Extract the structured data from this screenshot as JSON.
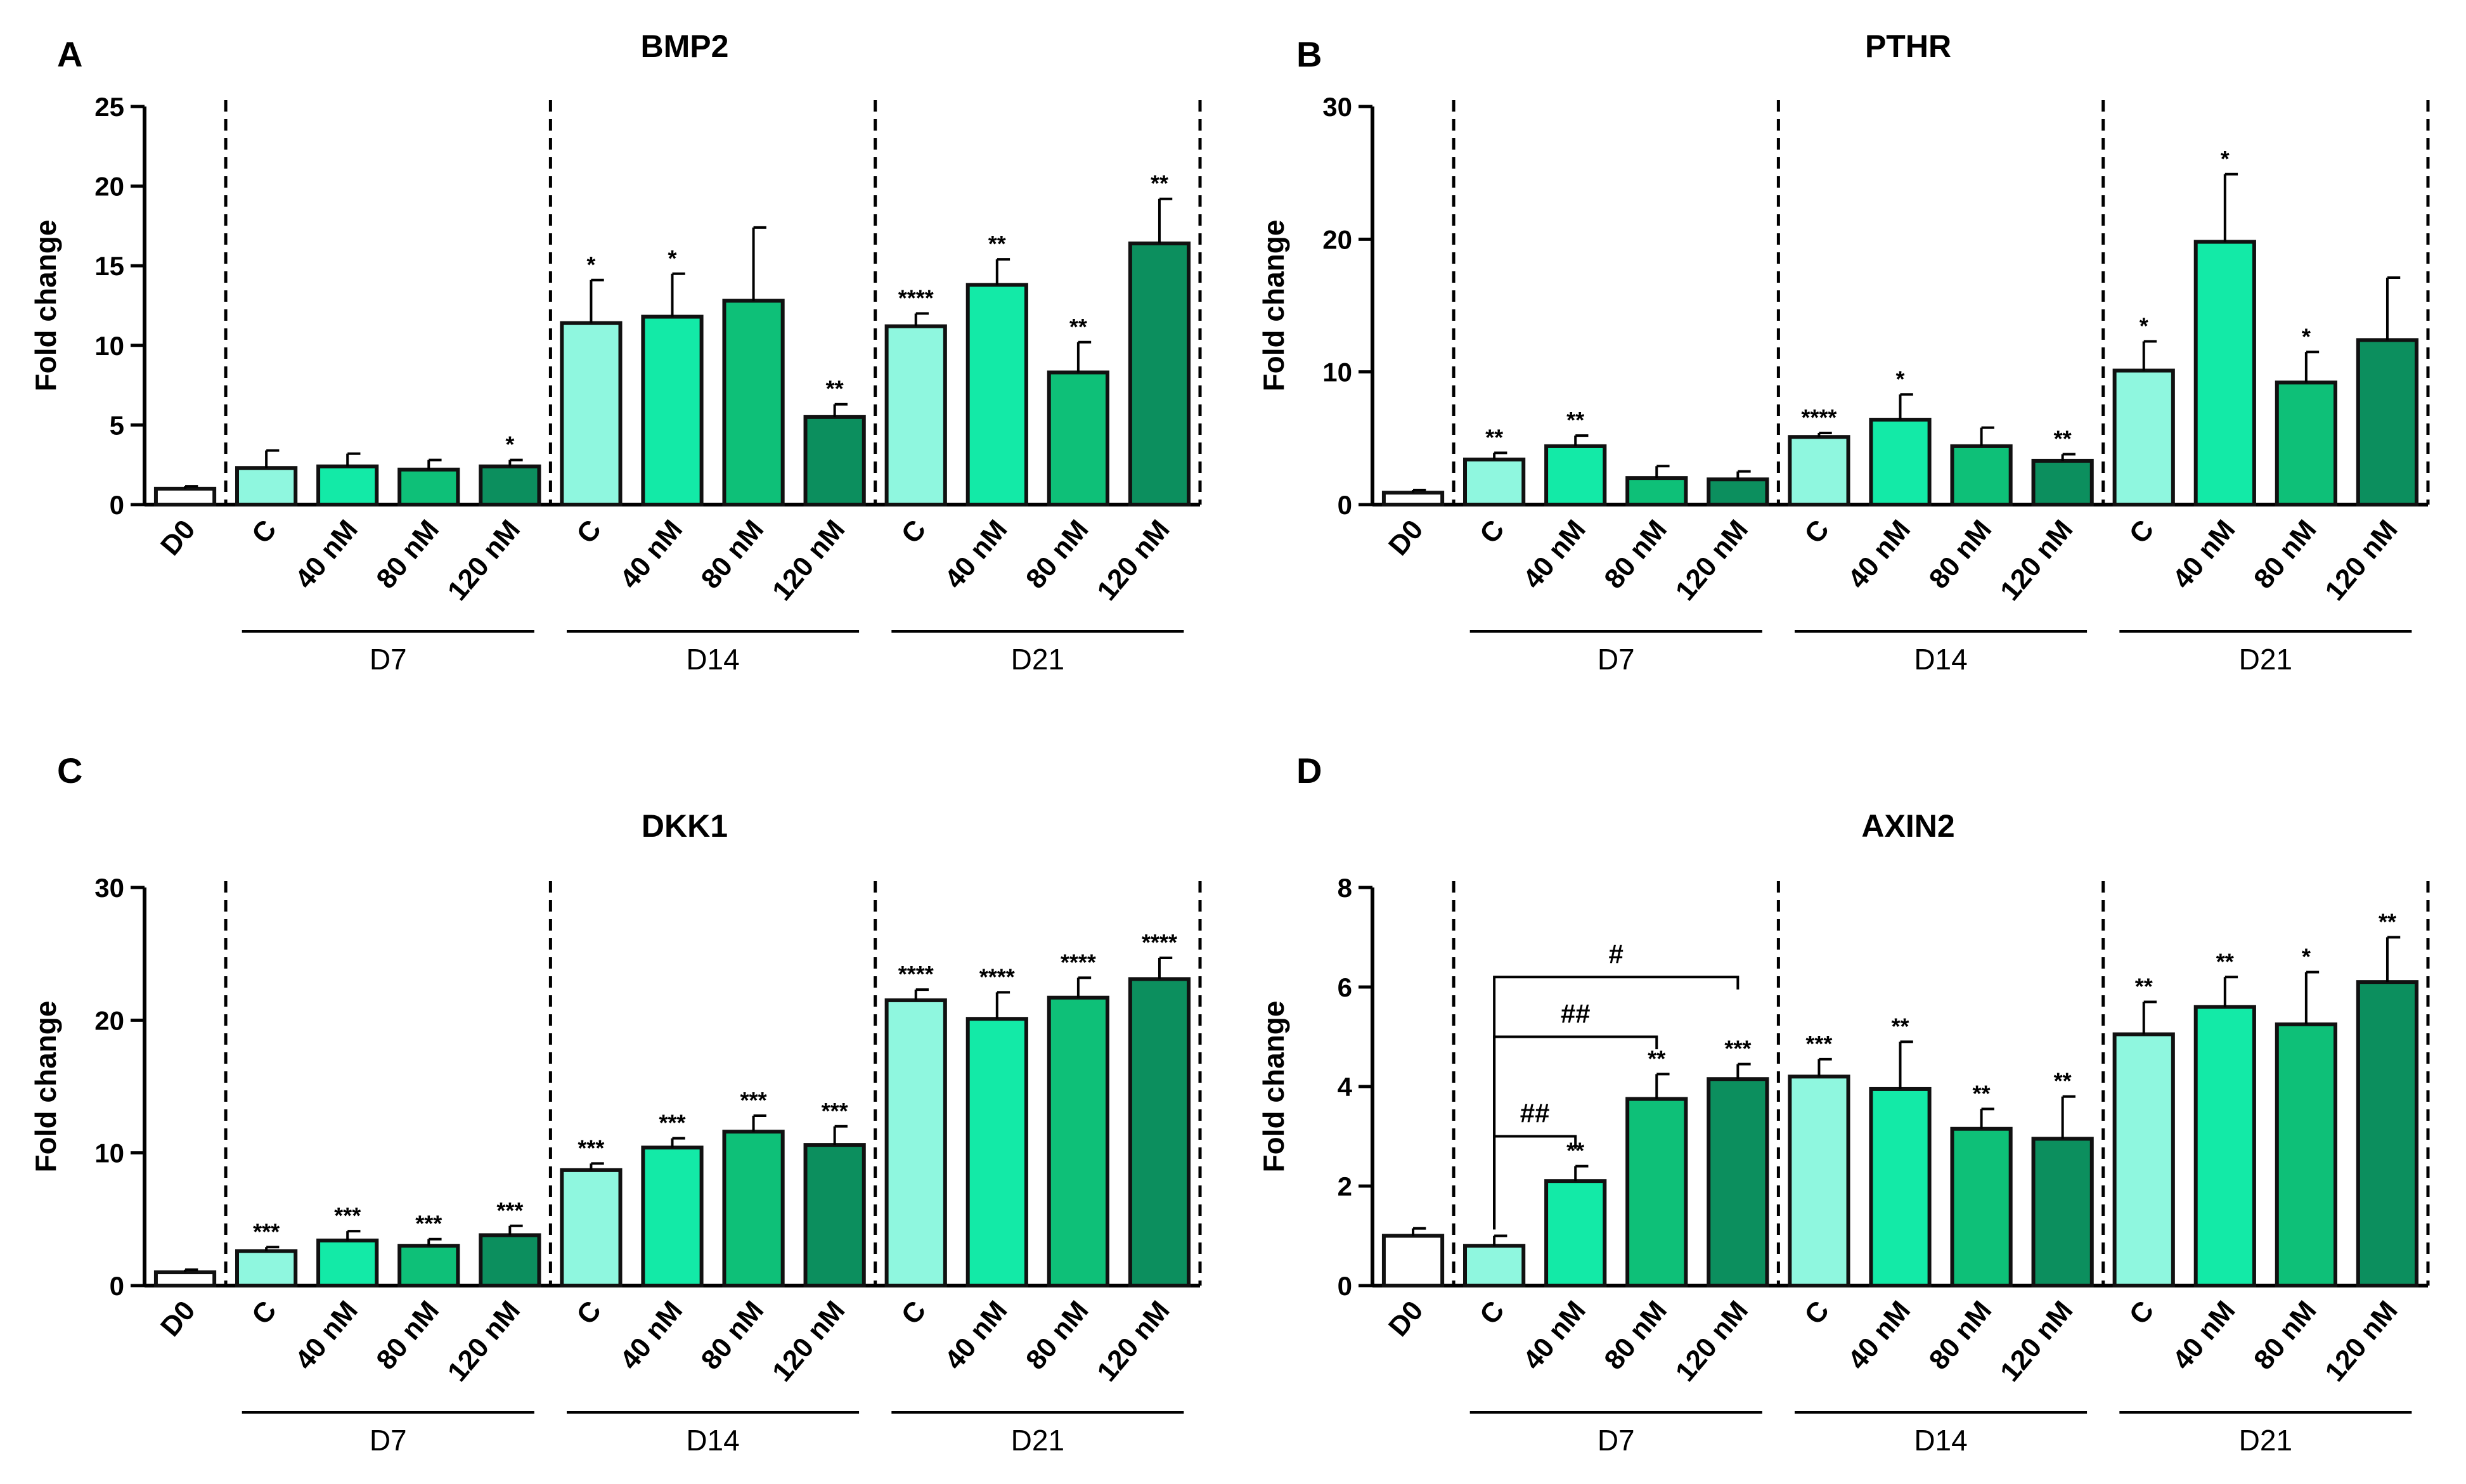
{
  "figure": {
    "group_labels": [
      "D7",
      "D14",
      "D21"
    ],
    "colors": {
      "D0": "#ffffff",
      "C": "#8ff7df",
      "40 nM": "#13eaa7",
      "80 nM": "#0ec078",
      "120 nM": "#0c8f5e",
      "outline": "#111111"
    }
  },
  "chart_data": [
    {
      "panel": "A",
      "type": "bar",
      "title": "BMP2",
      "ylabel": "Fold change",
      "ylim": [
        0,
        25
      ],
      "yticks": [
        "0",
        "5",
        "10",
        "15",
        "20",
        "25"
      ],
      "categories": [
        "D0",
        "C",
        "40 nM",
        "80 nM",
        "120 nM",
        "C",
        "40 nM",
        "80 nM",
        "120 nM",
        "C",
        "40 nM",
        "80 nM",
        "120 nM"
      ],
      "groups": [
        "",
        "D7",
        "D7",
        "D7",
        "D7",
        "D14",
        "D14",
        "D14",
        "D14",
        "D21",
        "D21",
        "D21",
        "D21"
      ],
      "values": [
        1.0,
        2.3,
        2.4,
        2.2,
        2.4,
        11.4,
        11.8,
        12.8,
        5.5,
        11.2,
        13.8,
        8.3,
        16.4
      ],
      "errors": [
        0.15,
        1.1,
        0.8,
        0.6,
        0.4,
        2.7,
        2.7,
        4.6,
        0.8,
        0.8,
        1.6,
        1.9,
        2.8
      ],
      "significance": [
        "",
        "",
        "",
        "",
        "*",
        "*",
        "*",
        "",
        "**",
        "****",
        "**",
        "**",
        "**"
      ],
      "brackets": []
    },
    {
      "panel": "B",
      "type": "bar",
      "title": "PTHR",
      "ylabel": "Fold change",
      "ylim": [
        0,
        30
      ],
      "yticks": [
        "0",
        "10",
        "20",
        "30"
      ],
      "categories": [
        "D0",
        "C",
        "40 nM",
        "80 nM",
        "120 nM",
        "C",
        "40 nM",
        "80 nM",
        "120 nM",
        "C",
        "40 nM",
        "80 nM",
        "120 nM"
      ],
      "groups": [
        "",
        "D7",
        "D7",
        "D7",
        "D7",
        "D14",
        "D14",
        "D14",
        "D14",
        "D21",
        "D21",
        "D21",
        "D21"
      ],
      "values": [
        0.9,
        3.4,
        4.4,
        2.0,
        1.9,
        5.1,
        6.4,
        4.4,
        3.3,
        10.1,
        19.8,
        9.2,
        12.4
      ],
      "errors": [
        0.2,
        0.5,
        0.8,
        0.9,
        0.6,
        0.3,
        1.9,
        1.4,
        0.5,
        2.2,
        5.1,
        2.3,
        4.7
      ],
      "significance": [
        "",
        "**",
        "**",
        "",
        "",
        "****",
        "*",
        "",
        "**",
        "*",
        "*",
        "*",
        ""
      ],
      "brackets": []
    },
    {
      "panel": "C",
      "type": "bar",
      "title": "DKK1",
      "ylabel": "Fold change",
      "ylim": [
        0,
        30
      ],
      "yticks": [
        "0",
        "10",
        "20",
        "30"
      ],
      "categories": [
        "D0",
        "C",
        "40 nM",
        "80 nM",
        "120 nM",
        "C",
        "40 nM",
        "80 nM",
        "120 nM",
        "C",
        "40 nM",
        "80 nM",
        "120 nM"
      ],
      "groups": [
        "",
        "D7",
        "D7",
        "D7",
        "D7",
        "D14",
        "D14",
        "D14",
        "D14",
        "D21",
        "D21",
        "D21",
        "D21"
      ],
      "values": [
        1.0,
        2.6,
        3.4,
        3.0,
        3.8,
        8.7,
        10.4,
        11.6,
        10.6,
        21.5,
        20.1,
        21.7,
        23.1
      ],
      "errors": [
        0.2,
        0.3,
        0.7,
        0.5,
        0.7,
        0.5,
        0.7,
        1.2,
        1.4,
        0.8,
        2.0,
        1.5,
        1.6
      ],
      "significance": [
        "",
        "***",
        "***",
        "***",
        "***",
        "***",
        "***",
        "***",
        "***",
        "****",
        "****",
        "****",
        "****"
      ],
      "brackets": []
    },
    {
      "panel": "D",
      "type": "bar",
      "title": "AXIN2",
      "ylabel": "Fold change",
      "ylim": [
        0,
        8
      ],
      "yticks": [
        "0",
        "2",
        "4",
        "6",
        "8"
      ],
      "categories": [
        "D0",
        "C",
        "40 nM",
        "80 nM",
        "120 nM",
        "C",
        "40 nM",
        "80 nM",
        "120 nM",
        "C",
        "40 nM",
        "80 nM",
        "120 nM"
      ],
      "groups": [
        "",
        "D7",
        "D7",
        "D7",
        "D7",
        "D14",
        "D14",
        "D14",
        "D14",
        "D21",
        "D21",
        "D21",
        "D21"
      ],
      "values": [
        1.0,
        0.8,
        2.1,
        3.75,
        4.15,
        4.2,
        3.95,
        3.15,
        2.95,
        5.05,
        5.6,
        5.25,
        6.1
      ],
      "errors": [
        0.15,
        0.2,
        0.3,
        0.5,
        0.3,
        0.35,
        0.95,
        0.4,
        0.85,
        0.65,
        0.6,
        1.05,
        0.9
      ],
      "significance": [
        "",
        "",
        "**",
        "**",
        "***",
        "***",
        "**",
        "**",
        "**",
        "**",
        "**",
        "*",
        "**"
      ],
      "brackets": [
        {
          "from": 1,
          "to": 2,
          "label": "##",
          "y": 3.0
        },
        {
          "from": 1,
          "to": 3,
          "label": "##",
          "y": 5.0
        },
        {
          "from": 1,
          "to": 4,
          "label": "#",
          "y": 6.2
        }
      ]
    }
  ]
}
